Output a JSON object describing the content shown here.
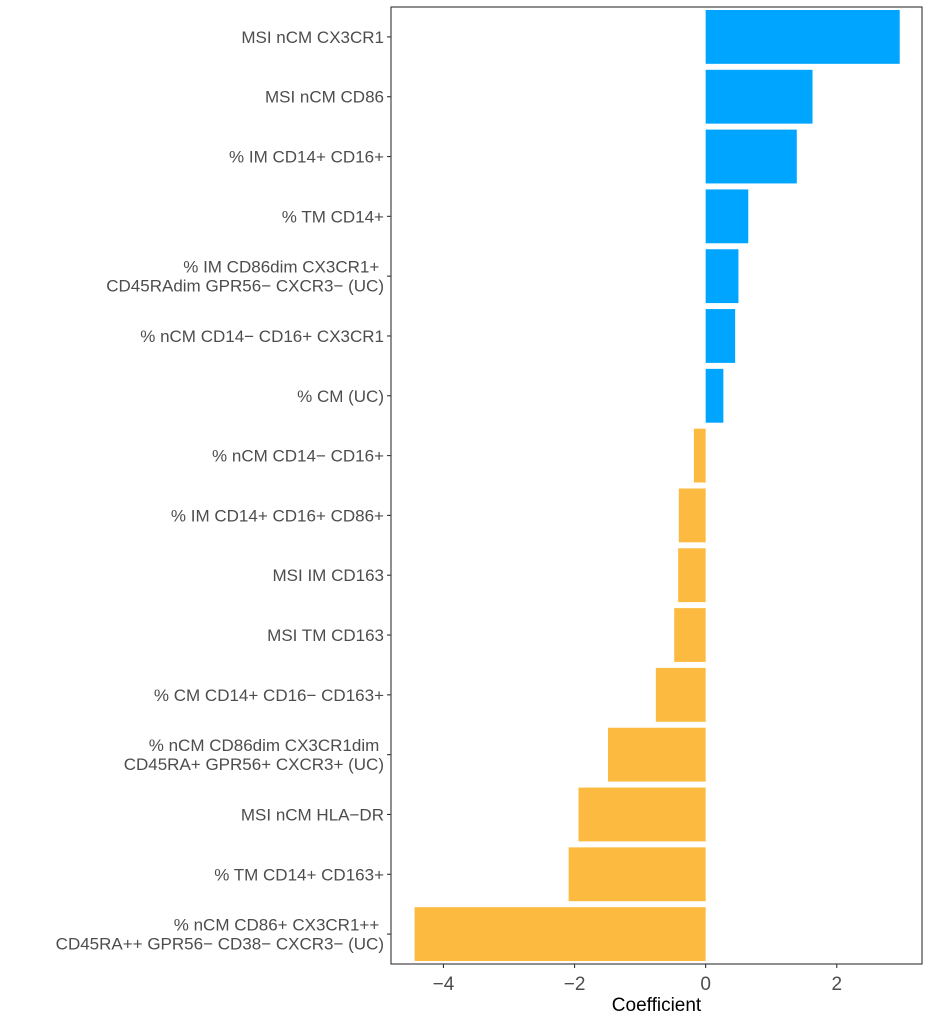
{
  "chart_data": {
    "type": "bar",
    "orientation": "horizontal",
    "title": "",
    "xlabel": "Coefficient",
    "ylabel": "",
    "xlim": [
      -4.8,
      3.3
    ],
    "xticks": [
      -4,
      -2,
      0,
      2
    ],
    "xtick_labels": [
      "−4",
      "−2",
      "0",
      "2"
    ],
    "grid": false,
    "legend": "none",
    "colors": {
      "positive": "#00A5FF",
      "negative": "#FDBA40"
    },
    "categories": [
      [
        "MSI nCM CX3CR1"
      ],
      [
        "MSI nCM CD86"
      ],
      [
        "% IM CD14+ CD16+"
      ],
      [
        "% TM CD14+"
      ],
      [
        "% IM CD86dim CX3CR1+ ",
        "CD45RAdim GPR56− CXCR3− (UC)"
      ],
      [
        "% nCM CD14− CD16+ CX3CR1"
      ],
      [
        "% CM (UC)"
      ],
      [
        "% nCM CD14− CD16+"
      ],
      [
        "% IM CD14+ CD16+ CD86+"
      ],
      [
        "MSI IM CD163"
      ],
      [
        "MSI TM CD163"
      ],
      [
        "% CM CD14+ CD16− CD163+"
      ],
      [
        "% nCM CD86dim CX3CR1dim ",
        "CD45RA+ GPR56+ CXCR3+ (UC)"
      ],
      [
        "MSI nCM HLA−DR"
      ],
      [
        "% TM CD14+ CD163+"
      ],
      [
        "% nCM CD86+ CX3CR1++ ",
        "CD45RA++ GPR56− CD38− CXCR3− (UC)"
      ]
    ],
    "values": [
      2.96,
      1.63,
      1.39,
      0.65,
      0.5,
      0.45,
      0.27,
      -0.18,
      -0.41,
      -0.42,
      -0.48,
      -0.76,
      -1.49,
      -1.94,
      -2.09,
      -4.44
    ]
  }
}
